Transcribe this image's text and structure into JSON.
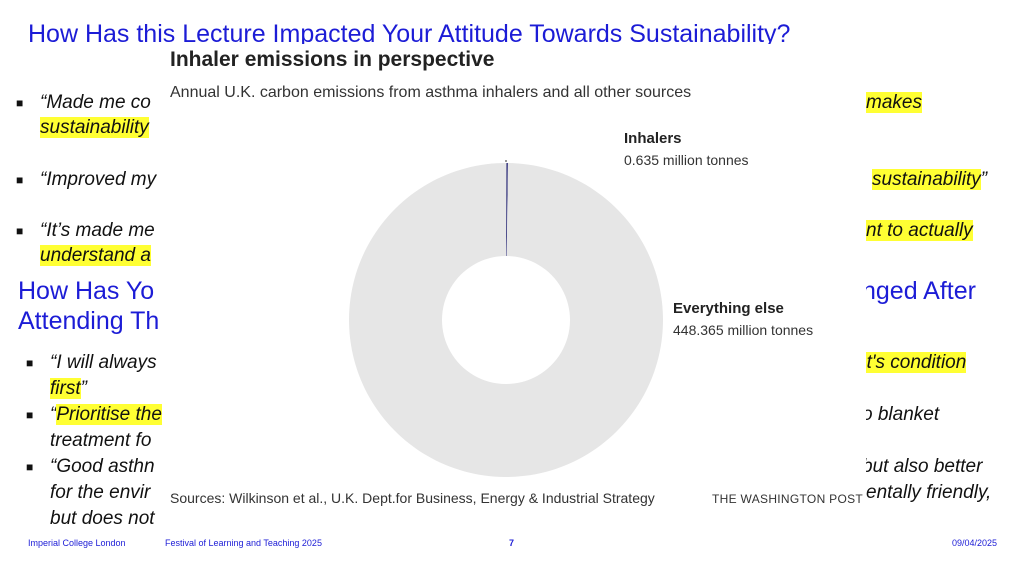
{
  "slide": {
    "title1": "How Has this Lecture Impacted Your Attitude Towards Sustainability?",
    "bullets_top": [
      {
        "pre": "“Made me co",
        "hl": "makes",
        "post": ""
      },
      {
        "pre": "",
        "hl": "sustainability",
        "post": ""
      },
      {
        "pre": "“Improved my",
        "hl": "sustainability",
        "post": "”"
      },
      {
        "pre": "“It’s made me",
        "hl": "nt to actually",
        "post": ""
      },
      {
        "pre": "",
        "hl": "understand a",
        "post": ""
      }
    ],
    "title2_left_line1": "How Has Yo",
    "title2_left_line2": "Attending Th",
    "title2_right": "nged After",
    "bullets_bottom": [
      {
        "pre": "“I will always",
        "right_hl": "nt's condition"
      },
      {
        "pre": "",
        "hl": "first",
        "post": "”"
      },
      {
        "pre": "“",
        "hl": "Prioritise the",
        "right": "o blanket"
      },
      {
        "pre": "treatment fo"
      },
      {
        "pre": "“Good asthn",
        "right": "but also better"
      },
      {
        "pre": "for the envir",
        "right": "entally friendly,"
      },
      {
        "pre": "but does not"
      }
    ],
    "footer": {
      "org": "Imperial College London",
      "event": "Festival of Learning and Teaching 2025",
      "page": "7",
      "date": "09/04/2025"
    }
  },
  "overlay": {
    "title": "Inhaler emissions in perspective",
    "subtitle": "Annual U.K. carbon emissions from asthma inhalers and all other sources",
    "sources": "Sources: Wilkinson et al., U.K. Dept.for Business, Energy & Industrial Strategy",
    "brand": "THE WASHINGTON POST"
  },
  "chart_data": {
    "type": "pie",
    "title": "Inhaler emissions in perspective",
    "subtitle": "Annual U.K. carbon emissions from asthma inhalers and all other sources",
    "slices": [
      {
        "label": "Inhalers",
        "value": 0.635,
        "value_text": "0.635 million tonnes",
        "color": "#1a1a6e"
      },
      {
        "label": "Everything else",
        "value": 448.365,
        "value_text": "448.365 million tonnes",
        "color": "#e6e6e6"
      }
    ],
    "unit": "million tonnes"
  }
}
